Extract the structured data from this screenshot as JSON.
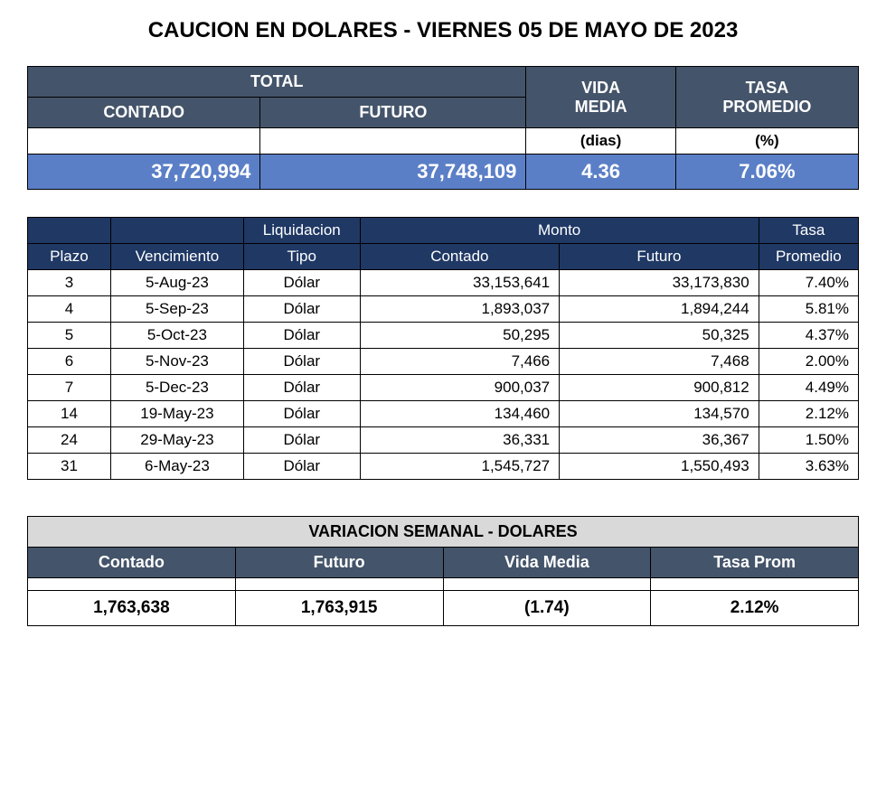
{
  "title": "CAUCION EN DOLARES - VIERNES 05 DE MAYO DE 2023",
  "summary": {
    "headers": {
      "total": "TOTAL",
      "contado": "CONTADO",
      "futuro": "FUTURO",
      "vida": "VIDA",
      "media": "MEDIA",
      "tasa": "TASA",
      "promedio": "PROMEDIO",
      "dias": "(dias)",
      "pct": "(%)"
    },
    "values": {
      "contado": "37,720,994",
      "futuro": "37,748,109",
      "vida_media": "4.36",
      "tasa_promedio": "7.06%"
    },
    "colors": {
      "header_bg": "#44546a",
      "header_fg": "#ffffff",
      "data_bg": "#5b7fc7",
      "data_fg": "#ffffff"
    }
  },
  "detail": {
    "headers": {
      "plazo": "Plazo",
      "vencimiento": "Vencimiento",
      "liquidacion": "Liquidacion",
      "tipo": "Tipo",
      "monto": "Monto",
      "contado": "Contado",
      "futuro": "Futuro",
      "tasa": "Tasa",
      "promedio": "Promedio"
    },
    "rows": [
      {
        "plazo": "3",
        "vencimiento": "5-Aug-23",
        "tipo": "Dólar",
        "contado": "33,153,641",
        "futuro": "33,173,830",
        "tasa": "7.40%"
      },
      {
        "plazo": "4",
        "vencimiento": "5-Sep-23",
        "tipo": "Dólar",
        "contado": "1,893,037",
        "futuro": "1,894,244",
        "tasa": "5.81%"
      },
      {
        "plazo": "5",
        "vencimiento": "5-Oct-23",
        "tipo": "Dólar",
        "contado": "50,295",
        "futuro": "50,325",
        "tasa": "4.37%"
      },
      {
        "plazo": "6",
        "vencimiento": "5-Nov-23",
        "tipo": "Dólar",
        "contado": "7,466",
        "futuro": "7,468",
        "tasa": "2.00%"
      },
      {
        "plazo": "7",
        "vencimiento": "5-Dec-23",
        "tipo": "Dólar",
        "contado": "900,037",
        "futuro": "900,812",
        "tasa": "4.49%"
      },
      {
        "plazo": "14",
        "vencimiento": "19-May-23",
        "tipo": "Dólar",
        "contado": "134,460",
        "futuro": "134,570",
        "tasa": "2.12%"
      },
      {
        "plazo": "24",
        "vencimiento": "29-May-23",
        "tipo": "Dólar",
        "contado": "36,331",
        "futuro": "36,367",
        "tasa": "1.50%"
      },
      {
        "plazo": "31",
        "vencimiento": "6-May-23",
        "tipo": "Dólar",
        "contado": "1,545,727",
        "futuro": "1,550,493",
        "tasa": "3.63%"
      }
    ],
    "colors": {
      "header_bg": "#1f3864",
      "header_fg": "#ffffff"
    }
  },
  "variation": {
    "title": "VARIACION SEMANAL - DOLARES",
    "headers": {
      "contado": "Contado",
      "futuro": "Futuro",
      "vida_media": "Vida Media",
      "tasa_prom": "Tasa Prom"
    },
    "values": {
      "contado": "1,763,638",
      "futuro": "1,763,915",
      "vida_media": "(1.74)",
      "tasa_prom": "2.12%"
    },
    "colors": {
      "title_bg": "#d9d9d9",
      "header_bg": "#44546a",
      "header_fg": "#ffffff"
    }
  }
}
